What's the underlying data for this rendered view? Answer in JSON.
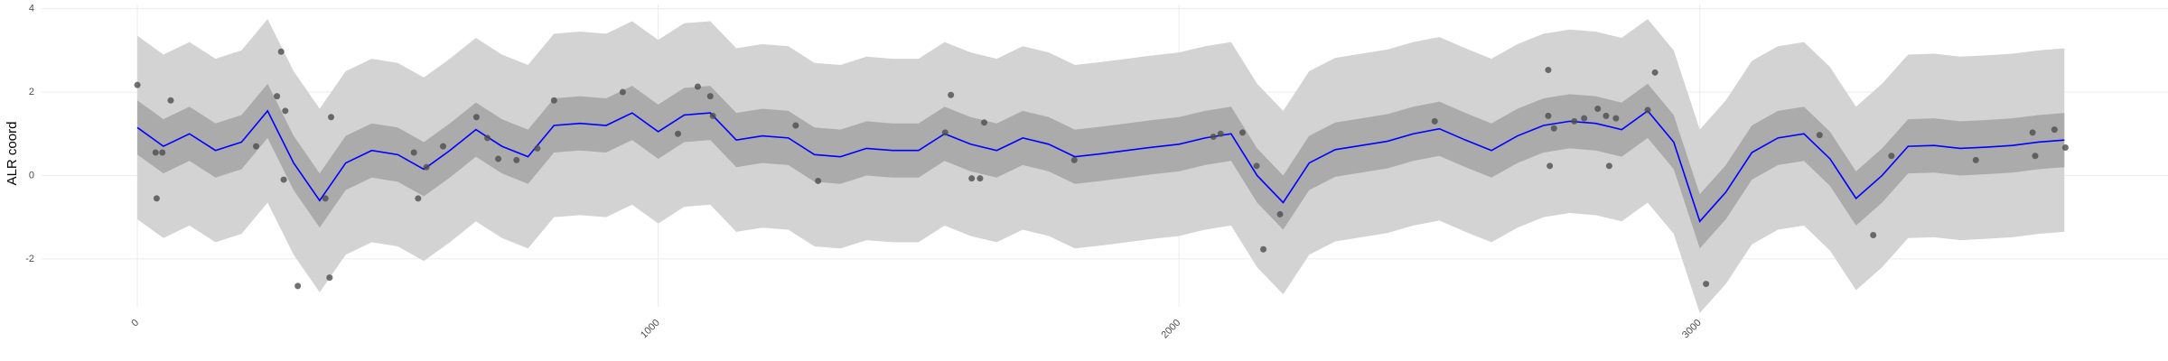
{
  "chart_data": {
    "type": "line",
    "y_label": "ALR coord",
    "xlim": [
      -184,
      3899
    ],
    "ylim": [
      -3.15,
      4.1
    ],
    "xticks": [
      0,
      1000,
      2000,
      3000
    ],
    "yticks": [
      -2,
      0,
      2,
      4
    ],
    "grid": true,
    "x": [
      0,
      50,
      100,
      150,
      200,
      250,
      300,
      350,
      400,
      450,
      500,
      550,
      600,
      650,
      700,
      750,
      800,
      850,
      900,
      950,
      1000,
      1050,
      1100,
      1150,
      1200,
      1250,
      1300,
      1350,
      1400,
      1450,
      1500,
      1550,
      1600,
      1650,
      1700,
      1750,
      1800,
      1850,
      1900,
      1950,
      2000,
      2050,
      2100,
      2150,
      2200,
      2250,
      2300,
      2350,
      2400,
      2450,
      2500,
      2550,
      2600,
      2650,
      2700,
      2750,
      2800,
      2850,
      2900,
      2950,
      3000,
      3050,
      3100,
      3150,
      3200,
      3250,
      3300,
      3350,
      3400,
      3450,
      3500,
      3550,
      3600,
      3650,
      3700
    ],
    "bands": [
      {
        "color": "#d3d3d3",
        "lower": [
          -1.05,
          -1.5,
          -1.2,
          -1.6,
          -1.4,
          -0.65,
          -1.9,
          -2.8,
          -1.9,
          -1.6,
          -1.7,
          -2.05,
          -1.6,
          -1.1,
          -1.5,
          -1.75,
          -1,
          -0.95,
          -1,
          -0.7,
          -1.15,
          -0.75,
          -0.7,
          -1.35,
          -1.25,
          -1.3,
          -1.7,
          -1.75,
          -1.55,
          -1.6,
          -1.6,
          -1.2,
          -1.45,
          -1.6,
          -1.3,
          -1.45,
          -1.75,
          -1.68,
          -1.6,
          -1.52,
          -1.45,
          -1.3,
          -1.2,
          -2.2,
          -2.85,
          -1.9,
          -1.58,
          -1.48,
          -1.38,
          -1.2,
          -1.08,
          -1.35,
          -1.6,
          -1.25,
          -1,
          -0.9,
          -0.95,
          -1.1,
          -0.65,
          -1.4,
          -3.3,
          -2.6,
          -1.65,
          -1.3,
          -1.2,
          -1.8,
          -2.75,
          -2.2,
          -1.5,
          -1.48,
          -1.55,
          -1.52,
          -1.48,
          -1.4,
          -1.35
        ],
        "upper": [
          3.35,
          2.9,
          3.2,
          2.8,
          3,
          3.75,
          2.5,
          1.6,
          2.5,
          2.8,
          2.7,
          2.35,
          2.8,
          3.3,
          2.9,
          2.65,
          3.4,
          3.45,
          3.4,
          3.7,
          3.25,
          3.65,
          3.7,
          3.05,
          3.15,
          3.1,
          2.7,
          2.65,
          2.85,
          2.8,
          2.8,
          3.2,
          2.95,
          2.8,
          3.1,
          2.95,
          2.65,
          2.72,
          2.8,
          2.88,
          2.95,
          3.1,
          3.2,
          2.2,
          1.55,
          2.5,
          2.82,
          2.92,
          3.02,
          3.2,
          3.32,
          3.05,
          2.8,
          3.15,
          3.4,
          3.5,
          3.45,
          3.3,
          3.75,
          3,
          1.1,
          1.8,
          2.75,
          3.1,
          3.2,
          2.6,
          1.65,
          2.2,
          2.9,
          2.92,
          2.85,
          2.88,
          2.92,
          3,
          3.05
        ]
      },
      {
        "color": "#ababab",
        "lower": [
          0.5,
          0.05,
          0.35,
          -0.05,
          0.15,
          0.9,
          -0.35,
          -1.25,
          -0.35,
          -0.05,
          -0.15,
          -0.5,
          -0.05,
          0.45,
          0.05,
          -0.2,
          0.55,
          0.6,
          0.55,
          0.85,
          0.4,
          0.8,
          0.85,
          0.2,
          0.3,
          0.25,
          -0.15,
          -0.2,
          0,
          -0.05,
          -0.05,
          0.35,
          0.1,
          -0.05,
          0.25,
          0.1,
          -0.2,
          -0.13,
          -0.05,
          0.03,
          0.1,
          0.25,
          0.35,
          -0.65,
          -1.3,
          -0.35,
          -0.03,
          0.07,
          0.17,
          0.35,
          0.47,
          0.2,
          -0.05,
          0.3,
          0.55,
          0.65,
          0.6,
          0.45,
          0.9,
          0.15,
          -1.75,
          -1.05,
          -0.1,
          0.25,
          0.35,
          -0.25,
          -1.2,
          -0.65,
          0.05,
          0.07,
          0,
          0.03,
          0.07,
          0.15,
          0.2
        ],
        "upper": [
          1.8,
          1.35,
          1.65,
          1.25,
          1.45,
          2.2,
          0.95,
          0.05,
          0.95,
          1.25,
          1.15,
          0.8,
          1.25,
          1.75,
          1.35,
          1.1,
          1.85,
          1.9,
          1.85,
          2.15,
          1.7,
          2.1,
          2.15,
          1.5,
          1.6,
          1.55,
          1.15,
          1.1,
          1.3,
          1.25,
          1.25,
          1.65,
          1.4,
          1.25,
          1.55,
          1.4,
          1.1,
          1.17,
          1.25,
          1.33,
          1.4,
          1.55,
          1.65,
          0.65,
          0,
          0.95,
          1.27,
          1.37,
          1.47,
          1.65,
          1.77,
          1.5,
          1.25,
          1.6,
          1.85,
          1.95,
          1.9,
          1.75,
          2.2,
          1.45,
          -0.45,
          0.25,
          1.2,
          1.55,
          1.65,
          1.05,
          0.1,
          0.65,
          1.35,
          1.37,
          1.3,
          1.33,
          1.37,
          1.45,
          1.5
        ]
      }
    ],
    "line": {
      "color": "#0000ff",
      "values": [
        1.15,
        0.7,
        1.0,
        0.6,
        0.8,
        1.55,
        0.3,
        -0.6,
        0.3,
        0.6,
        0.5,
        0.15,
        0.6,
        1.1,
        0.7,
        0.45,
        1.2,
        1.25,
        1.2,
        1.5,
        1.05,
        1.45,
        1.5,
        0.85,
        0.95,
        0.9,
        0.5,
        0.45,
        0.65,
        0.6,
        0.6,
        1.0,
        0.75,
        0.6,
        0.9,
        0.75,
        0.45,
        0.52,
        0.6,
        0.68,
        0.75,
        0.9,
        1.0,
        0.0,
        -0.65,
        0.3,
        0.62,
        0.72,
        0.82,
        1.0,
        1.12,
        0.85,
        0.6,
        0.95,
        1.2,
        1.3,
        1.25,
        1.1,
        1.55,
        0.8,
        -1.1,
        -0.4,
        0.55,
        0.9,
        1.0,
        0.4,
        -0.55,
        0.0,
        0.7,
        0.72,
        0.65,
        0.68,
        0.72,
        0.8,
        0.85
      ]
    },
    "points": {
      "color": "#4d4d4d",
      "x": [
        0,
        35,
        48,
        37,
        64,
        228,
        268,
        276,
        284,
        281,
        308,
        361,
        369,
        372,
        531,
        539,
        555,
        587,
        651,
        672,
        693,
        728,
        768,
        800,
        932,
        1038,
        1076,
        1100,
        1105,
        1264,
        1307,
        1562,
        1551,
        1602,
        1618,
        1626,
        1799,
        2066,
        2080,
        2122,
        2149,
        2162,
        2194,
        2491,
        2709,
        2709,
        2712,
        2720,
        2759,
        2778,
        2804,
        2820,
        2826,
        2839,
        2900,
        2914,
        3012,
        3230,
        3333,
        3368,
        3530,
        3644,
        3639,
        3681,
        3702
      ],
      "values": [
        2.17,
        0.55,
        0.55,
        -0.55,
        1.8,
        0.7,
        1.9,
        2.97,
        1.55,
        -0.1,
        -2.65,
        -0.55,
        -2.45,
        1.4,
        0.55,
        -0.55,
        0.2,
        0.7,
        1.4,
        0.9,
        0.4,
        0.37,
        0.65,
        1.8,
        2.0,
        1.0,
        2.13,
        1.9,
        1.43,
        1.2,
        -0.13,
        1.93,
        1.03,
        -0.07,
        -0.07,
        1.27,
        0.37,
        0.93,
        1.0,
        1.03,
        0.23,
        -1.77,
        -0.93,
        1.3,
        2.53,
        1.43,
        0.23,
        1.13,
        1.3,
        1.37,
        1.6,
        1.43,
        0.23,
        1.37,
        1.57,
        2.47,
        -2.6,
        0.97,
        -1.43,
        0.47,
        0.37,
        0.47,
        1.03,
        1.1,
        0.67
      ]
    }
  }
}
